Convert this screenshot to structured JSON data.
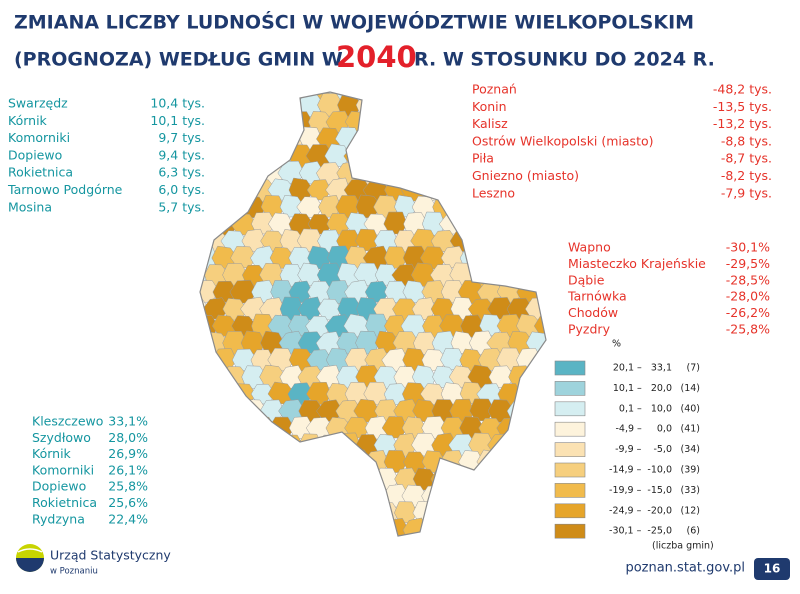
{
  "header": {
    "title_line1": "ZMIANA  LICZBY LUDNOŚCI  W  WOJEWÓDZTWIE  WIELKOPOLSKIM",
    "title_line2_start": "(PROGNOZA) WEDŁUG  GMIN  W",
    "title_year": "2040",
    "title_line2_end": "R.  W  STOSUNKU  DO  2024 R."
  },
  "gain_absolute": {
    "rows": [
      [
        "Swarzędz",
        "10,4 tys."
      ],
      [
        "Kórnik",
        "10,1 tys."
      ],
      [
        "Komorniki",
        "9,7 tys."
      ],
      [
        "Dopiewo",
        "9,4 tys."
      ],
      [
        "Rokietnica",
        "6,3 tys."
      ],
      [
        "Tarnowo Podgórne",
        "6,0 tys."
      ],
      [
        "Mosina",
        "5,7 tys."
      ]
    ]
  },
  "loss_absolute": {
    "rows": [
      [
        "Poznań",
        "-48,2 tys."
      ],
      [
        "Konin",
        "-13,5 tys."
      ],
      [
        "Kalisz",
        "-13,2 tys."
      ],
      [
        "Ostrów Wielkopolski (miasto)",
        "-8,8 tys."
      ],
      [
        "Piła",
        "-8,7 tys."
      ],
      [
        "Gniezno (miasto)",
        "-8,2 tys."
      ],
      [
        "Leszno",
        "-7,9 tys."
      ]
    ]
  },
  "loss_percent": {
    "rows": [
      [
        "Wapno",
        "-30,1%"
      ],
      [
        "Miasteczko Krajeńskie",
        "-29,5%"
      ],
      [
        "Dąbie",
        "-28,5%"
      ],
      [
        "Tarnówka",
        "-28,0%"
      ],
      [
        "Chodów",
        "-26,2%"
      ],
      [
        "Pyzdry",
        "-25,8%"
      ]
    ]
  },
  "gain_percent": {
    "rows": [
      [
        "Kleszczewo",
        "33,1%"
      ],
      [
        "Szydłowo",
        "28,0%"
      ],
      [
        "Kórnik",
        "26,9%"
      ],
      [
        "Komorniki",
        "26,1%"
      ],
      [
        "Dopiewo",
        "25,8%"
      ],
      [
        "Rokietnica",
        "25,6%"
      ],
      [
        "Rydzyna",
        "22,4%"
      ]
    ]
  },
  "legend": {
    "unit": "%",
    "note": "(liczba gmin)",
    "classes": [
      {
        "range": "20,1 –   33,1",
        "count": "(7)",
        "color": "#5ab4c4"
      },
      {
        "range": "10,1 –   20,0",
        "count": "(14)",
        "color": "#9ed3dc"
      },
      {
        "range": "0,1 –   10,0",
        "count": "(40)",
        "color": "#d5eef1"
      },
      {
        "range": "-4,9 –     0,0",
        "count": "(41)",
        "color": "#fdf3dc"
      },
      {
        "range": "-9,9 –    -5,0",
        "count": "(34)",
        "color": "#fbe2b3"
      },
      {
        "range": "-14,9 –  -10,0",
        "count": "(39)",
        "color": "#f6cf7e"
      },
      {
        "range": "-19,9 –  -15,0",
        "count": "(33)",
        "color": "#f1bb4c"
      },
      {
        "range": "-24,9 –  -20,0",
        "count": "(12)",
        "color": "#e6a52a"
      },
      {
        "range": "-30,1 –  -25,0",
        "count": "(6)",
        "color": "#cf8c18"
      }
    ]
  },
  "footer": {
    "org_line1": "Urząd Statystyczny",
    "org_line2": "w Poznaniu",
    "url": "poznan.stat.gov.pl",
    "page": "16"
  }
}
